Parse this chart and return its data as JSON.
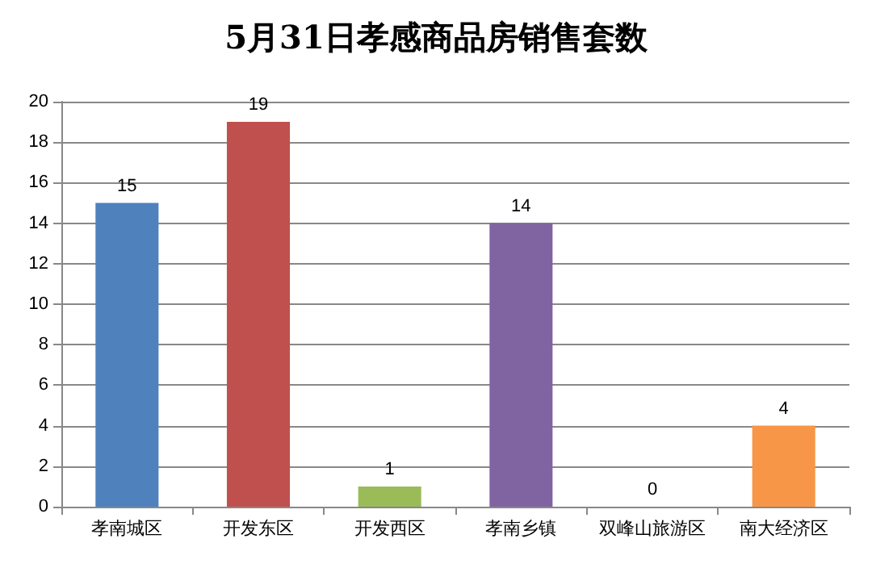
{
  "chart_data": {
    "type": "bar",
    "title": "5月31日孝感商品房销售套数",
    "categories": [
      "孝南城区",
      "开发东区",
      "开发西区",
      "孝南乡镇",
      "双峰山旅游区",
      "南大经济区"
    ],
    "values": [
      15,
      19,
      1,
      14,
      0,
      4
    ],
    "colors": [
      "#4f81bd",
      "#c0504d",
      "#9bbb59",
      "#8064a2",
      "#4bacc6",
      "#f79646"
    ],
    "ylim": [
      0,
      20
    ],
    "yticks": [
      0,
      2,
      4,
      6,
      8,
      10,
      12,
      14,
      16,
      18,
      20
    ],
    "grid": "y",
    "data_labels": true
  }
}
